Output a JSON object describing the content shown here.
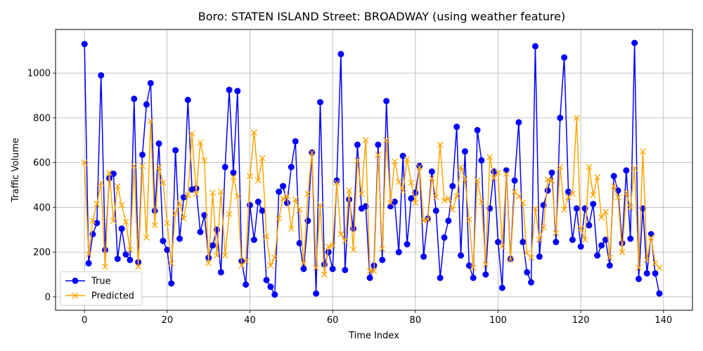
{
  "chart_data": {
    "type": "line",
    "title": "Boro: STATEN ISLAND Street: BROADWAY (using weather feature)",
    "xlabel": "Time Index",
    "ylabel": "Traffic Volume",
    "xlim": [
      -7,
      147
    ],
    "ylim": [
      -60,
      1195
    ],
    "xticks": [
      0,
      20,
      40,
      60,
      80,
      100,
      120,
      140
    ],
    "yticks": [
      0,
      200,
      400,
      600,
      800,
      1000
    ],
    "grid": true,
    "legend": "lower-left",
    "series": [
      {
        "name": "True",
        "color": "#0000ff",
        "marker": "circle",
        "values": [
          1130,
          150,
          280,
          330,
          990,
          210,
          530,
          550,
          170,
          305,
          190,
          165,
          885,
          155,
          635,
          860,
          955,
          385,
          685,
          250,
          210,
          60,
          655,
          260,
          445,
          880,
          480,
          485,
          290,
          365,
          175,
          230,
          300,
          110,
          580,
          925,
          555,
          920,
          160,
          55,
          410,
          255,
          425,
          385,
          75,
          45,
          10,
          470,
          495,
          420,
          580,
          695,
          240,
          125,
          340,
          645,
          15,
          870,
          145,
          200,
          125,
          520,
          1085,
          120,
          435,
          305,
          680,
          395,
          405,
          85,
          140,
          680,
          165,
          875,
          405,
          425,
          200,
          630,
          235,
          440,
          465,
          585,
          180,
          350,
          560,
          385,
          85,
          265,
          340,
          495,
          760,
          185,
          650,
          140,
          85,
          745,
          610,
          100,
          395,
          560,
          245,
          40,
          565,
          170,
          520,
          780,
          245,
          110,
          65,
          1120,
          180,
          410,
          475,
          555,
          245,
          800,
          1070,
          470,
          255,
          395,
          225,
          395,
          320,
          415,
          185,
          230,
          255,
          140,
          540,
          475,
          240,
          565,
          260,
          1135,
          80,
          395,
          105,
          280,
          105,
          15
        ]
      },
      {
        "name": "Predicted",
        "color": "#ffa500",
        "marker": "x",
        "values": [
          600,
          190,
          340,
          415,
          510,
          135,
          555,
          340,
          495,
          410,
          335,
          210,
          585,
          135,
          585,
          265,
          785,
          320,
          580,
          510,
          330,
          150,
          375,
          420,
          350,
          455,
          730,
          460,
          690,
          610,
          150,
          465,
          185,
          470,
          185,
          370,
          535,
          450,
          140,
          160,
          540,
          735,
          520,
          620,
          270,
          140,
          175,
          350,
          440,
          450,
          305,
          435,
          390,
          150,
          460,
          645,
          130,
          410,
          100,
          225,
          230,
          510,
          280,
          250,
          475,
          210,
          610,
          460,
          700,
          115,
          115,
          635,
          215,
          700,
          420,
          605,
          515,
          475,
          615,
          510,
          420,
          580,
          340,
          345,
          530,
          445,
          680,
          430,
          440,
          390,
          450,
          580,
          525,
          345,
          130,
          520,
          425,
          145,
          625,
          530,
          555,
          225,
          550,
          165,
          470,
          450,
          420,
          195,
          175,
          395,
          255,
          310,
          525,
          520,
          285,
          580,
          390,
          445,
          460,
          800,
          305,
          255,
          580,
          455,
          535,
          355,
          380,
          175,
          495,
          445,
          200,
          465,
          400,
          575,
          130,
          650,
          165,
          265,
          150,
          130
        ]
      }
    ]
  }
}
